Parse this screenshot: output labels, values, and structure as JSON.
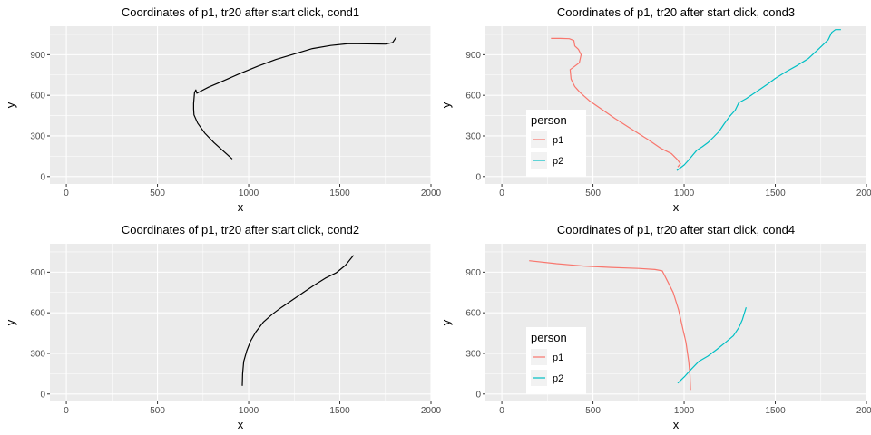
{
  "chart_data": [
    {
      "type": "line",
      "title": "Coordinates of p1, tr20 after start click, cond1",
      "xlabel": "x",
      "ylabel": "y",
      "xlim": [
        -90,
        2000
      ],
      "ylim": [
        -55,
        1110
      ],
      "xticks": [
        0,
        500,
        1000,
        1500,
        2000
      ],
      "yticks": [
        0,
        300,
        600,
        900
      ],
      "grid": true,
      "legend": null,
      "series": [
        {
          "color": "#000000",
          "points": [
            [
              910,
              130
            ],
            [
              860,
              190
            ],
            [
              810,
              250
            ],
            [
              760,
              320
            ],
            [
              720,
              395
            ],
            [
              700,
              455
            ],
            [
              698,
              500
            ],
            [
              698,
              540
            ],
            [
              703,
              620
            ],
            [
              710,
              640
            ],
            [
              716,
              615
            ],
            [
              730,
              625
            ],
            [
              780,
              660
            ],
            [
              850,
              700
            ],
            [
              950,
              760
            ],
            [
              1050,
              815
            ],
            [
              1150,
              865
            ],
            [
              1250,
              905
            ],
            [
              1350,
              945
            ],
            [
              1450,
              968
            ],
            [
              1550,
              982
            ],
            [
              1650,
              980
            ],
            [
              1750,
              978
            ],
            [
              1790,
              990
            ],
            [
              1810,
              1030
            ]
          ]
        }
      ]
    },
    {
      "type": "line",
      "title": "Coordinates of p1, tr20 after start click, cond3",
      "xlabel": "x",
      "ylabel": "y",
      "xlim": [
        -90,
        2000
      ],
      "ylim": [
        -55,
        1110
      ],
      "xticks": [
        0,
        500,
        1000,
        1500,
        2000
      ],
      "yticks": [
        0,
        300,
        600,
        900
      ],
      "grid": true,
      "legend": {
        "title": "person",
        "position": "inside-bottom-left"
      },
      "series": [
        {
          "name": "p1",
          "color": "#F8766D",
          "points": [
            [
              270,
              1020
            ],
            [
              320,
              1020
            ],
            [
              370,
              1018
            ],
            [
              395,
              1005
            ],
            [
              400,
              965
            ],
            [
              420,
              940
            ],
            [
              435,
              900
            ],
            [
              425,
              840
            ],
            [
              395,
              810
            ],
            [
              375,
              790
            ],
            [
              380,
              720
            ],
            [
              400,
              665
            ],
            [
              430,
              620
            ],
            [
              480,
              560
            ],
            [
              550,
              495
            ],
            [
              620,
              430
            ],
            [
              700,
              360
            ],
            [
              800,
              275
            ],
            [
              870,
              210
            ],
            [
              930,
              170
            ],
            [
              960,
              130
            ],
            [
              980,
              95
            ],
            [
              965,
              70
            ]
          ]
        },
        {
          "name": "p2",
          "color": "#00BFC4",
          "points": [
            [
              960,
              45
            ],
            [
              980,
              65
            ],
            [
              1000,
              85
            ],
            [
              1020,
              115
            ],
            [
              1045,
              155
            ],
            [
              1070,
              195
            ],
            [
              1100,
              220
            ],
            [
              1130,
              250
            ],
            [
              1160,
              290
            ],
            [
              1190,
              330
            ],
            [
              1220,
              390
            ],
            [
              1250,
              445
            ],
            [
              1280,
              490
            ],
            [
              1300,
              545
            ],
            [
              1340,
              575
            ],
            [
              1400,
              630
            ],
            [
              1460,
              685
            ],
            [
              1500,
              725
            ],
            [
              1560,
              775
            ],
            [
              1620,
              820
            ],
            [
              1680,
              870
            ],
            [
              1740,
              945
            ],
            [
              1790,
              1010
            ],
            [
              1810,
              1065
            ],
            [
              1830,
              1085
            ],
            [
              1860,
              1085
            ]
          ]
        }
      ]
    },
    {
      "type": "line",
      "title": "Coordinates of p1, tr20 after start click, cond2",
      "xlabel": "x",
      "ylabel": "y",
      "xlim": [
        -90,
        2000
      ],
      "ylim": [
        -55,
        1110
      ],
      "xticks": [
        0,
        500,
        1000,
        1500,
        2000
      ],
      "yticks": [
        0,
        300,
        600,
        900
      ],
      "grid": true,
      "legend": null,
      "series": [
        {
          "color": "#000000",
          "points": [
            [
              965,
              60
            ],
            [
              967,
              150
            ],
            [
              973,
              240
            ],
            [
              990,
              320
            ],
            [
              1010,
              390
            ],
            [
              1040,
              460
            ],
            [
              1080,
              530
            ],
            [
              1130,
              590
            ],
            [
              1180,
              640
            ],
            [
              1240,
              695
            ],
            [
              1300,
              750
            ],
            [
              1360,
              805
            ],
            [
              1420,
              855
            ],
            [
              1480,
              895
            ],
            [
              1530,
              950
            ],
            [
              1575,
              1025
            ]
          ]
        }
      ]
    },
    {
      "type": "line",
      "title": "Coordinates of p1, tr20 after start click, cond4",
      "xlabel": "x",
      "ylabel": "y",
      "xlim": [
        -90,
        2000
      ],
      "ylim": [
        -55,
        1110
      ],
      "xticks": [
        0,
        500,
        1000,
        1500,
        2000
      ],
      "yticks": [
        0,
        300,
        600,
        900
      ],
      "grid": true,
      "legend": {
        "title": "person",
        "position": "inside-bottom-left"
      },
      "series": [
        {
          "name": "p1",
          "color": "#F8766D",
          "points": [
            [
              150,
              985
            ],
            [
              300,
              963
            ],
            [
              450,
              945
            ],
            [
              600,
              935
            ],
            [
              750,
              928
            ],
            [
              840,
              920
            ],
            [
              880,
              910
            ],
            [
              910,
              830
            ],
            [
              940,
              750
            ],
            [
              970,
              620
            ],
            [
              990,
              500
            ],
            [
              1010,
              380
            ],
            [
              1025,
              240
            ],
            [
              1032,
              140
            ],
            [
              1035,
              30
            ]
          ]
        },
        {
          "name": "p2",
          "color": "#00BFC4",
          "points": [
            [
              965,
              80
            ],
            [
              1000,
              125
            ],
            [
              1040,
              185
            ],
            [
              1080,
              240
            ],
            [
              1130,
              280
            ],
            [
              1180,
              330
            ],
            [
              1230,
              385
            ],
            [
              1270,
              430
            ],
            [
              1300,
              490
            ],
            [
              1320,
              550
            ],
            [
              1340,
              640
            ]
          ]
        }
      ]
    }
  ]
}
